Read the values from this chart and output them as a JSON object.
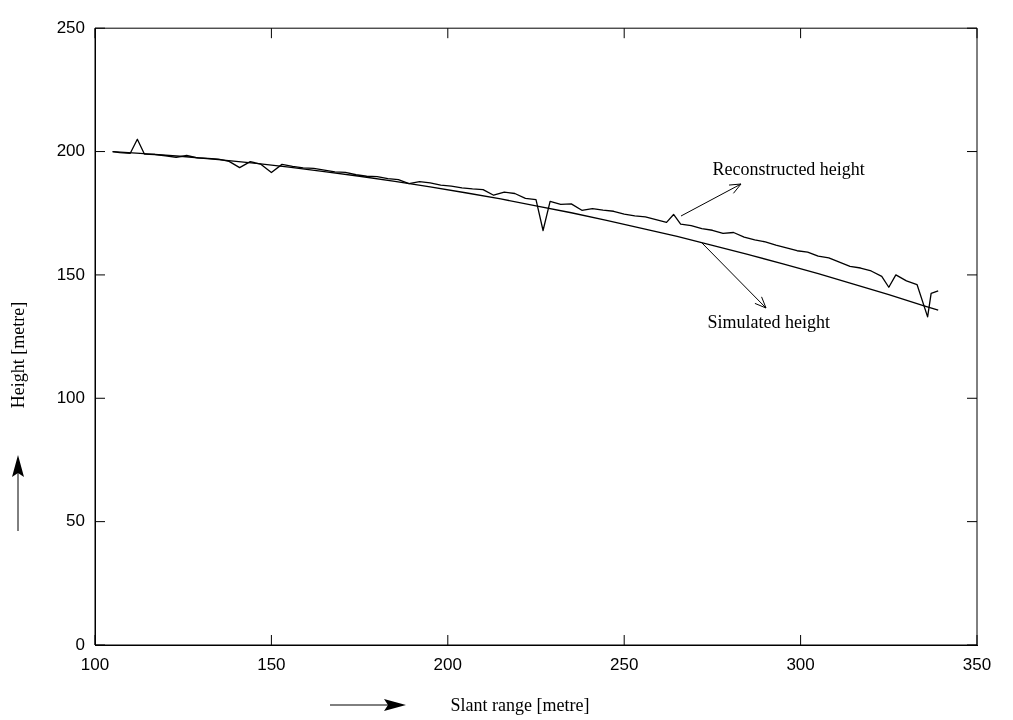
{
  "chart_data": {
    "type": "line",
    "xlabel": "Slant range [metre]",
    "ylabel": "Height [metre]",
    "xlim": [
      100,
      350
    ],
    "xticks": [
      100,
      150,
      200,
      250,
      300,
      350
    ],
    "ylim": [
      0,
      250
    ],
    "yticks": [
      0,
      50,
      100,
      150,
      200,
      250
    ],
    "grid": false,
    "marker": "none",
    "line_style": "solid",
    "series": [
      {
        "color": "#000000",
        "x": [
          105,
          107,
          110,
          112,
          114,
          117,
          120,
          123,
          126,
          129,
          132,
          135,
          138,
          141,
          144,
          147,
          150,
          153,
          156,
          159,
          162,
          165,
          168,
          171,
          174,
          177,
          180,
          183,
          186,
          189,
          192,
          195,
          198,
          201,
          204,
          207,
          210,
          213,
          216,
          219,
          222,
          225,
          227,
          229,
          232,
          235,
          238,
          241,
          244,
          247,
          250,
          253,
          256,
          259,
          262,
          264,
          266,
          269,
          272,
          275,
          278,
          281,
          284,
          287,
          290,
          293,
          296,
          299,
          302,
          305,
          308,
          311,
          314,
          317,
          320,
          323,
          325,
          327,
          330,
          333,
          336,
          337,
          339
        ],
        "values": [
          200.0,
          199.6,
          199.3,
          205.0,
          199.0,
          198.8,
          198.3,
          197.6,
          198.4,
          197.4,
          197.2,
          196.9,
          196.0,
          193.5,
          195.9,
          194.9,
          191.5,
          194.8,
          194.0,
          193.4,
          193.2,
          192.5,
          191.8,
          191.6,
          190.6,
          190.0,
          189.8,
          189.0,
          188.6,
          187.0,
          187.8,
          187.3,
          186.4,
          186.0,
          185.3,
          184.9,
          184.6,
          182.3,
          183.6,
          183.0,
          181.0,
          180.5,
          168.0,
          179.8,
          178.6,
          178.8,
          176.2,
          176.9,
          176.3,
          175.8,
          174.6,
          173.9,
          173.5,
          172.4,
          171.3,
          174.5,
          170.6,
          170.0,
          168.8,
          168.1,
          166.8,
          167.2,
          165.3,
          164.2,
          163.4,
          162.1,
          161.0,
          159.8,
          159.2,
          157.6,
          156.9,
          155.2,
          153.5,
          152.8,
          151.6,
          149.4,
          145.0,
          150.0,
          147.6,
          146.1,
          133.0,
          142.5,
          143.5
        ]
      },
      {
        "color": "#000000",
        "x": [
          105,
          115,
          125,
          135,
          145,
          155,
          165,
          175,
          185,
          195,
          205,
          215,
          225,
          235,
          245,
          255,
          265,
          275,
          285,
          295,
          305,
          315,
          325,
          335,
          339
        ],
        "values": [
          200.0,
          199.1,
          198.0,
          196.7,
          195.3,
          193.7,
          191.9,
          190.0,
          187.9,
          185.7,
          183.3,
          180.8,
          178.0,
          175.2,
          172.1,
          168.9,
          165.6,
          162.0,
          158.3,
          154.5,
          150.5,
          146.3,
          142.0,
          137.5,
          135.7
        ]
      }
    ],
    "annotations": [
      {
        "text": "Reconstructed height",
        "x": 266,
        "y": 174
      },
      {
        "text": "Simulated height",
        "x": 272,
        "y": 163
      }
    ]
  }
}
